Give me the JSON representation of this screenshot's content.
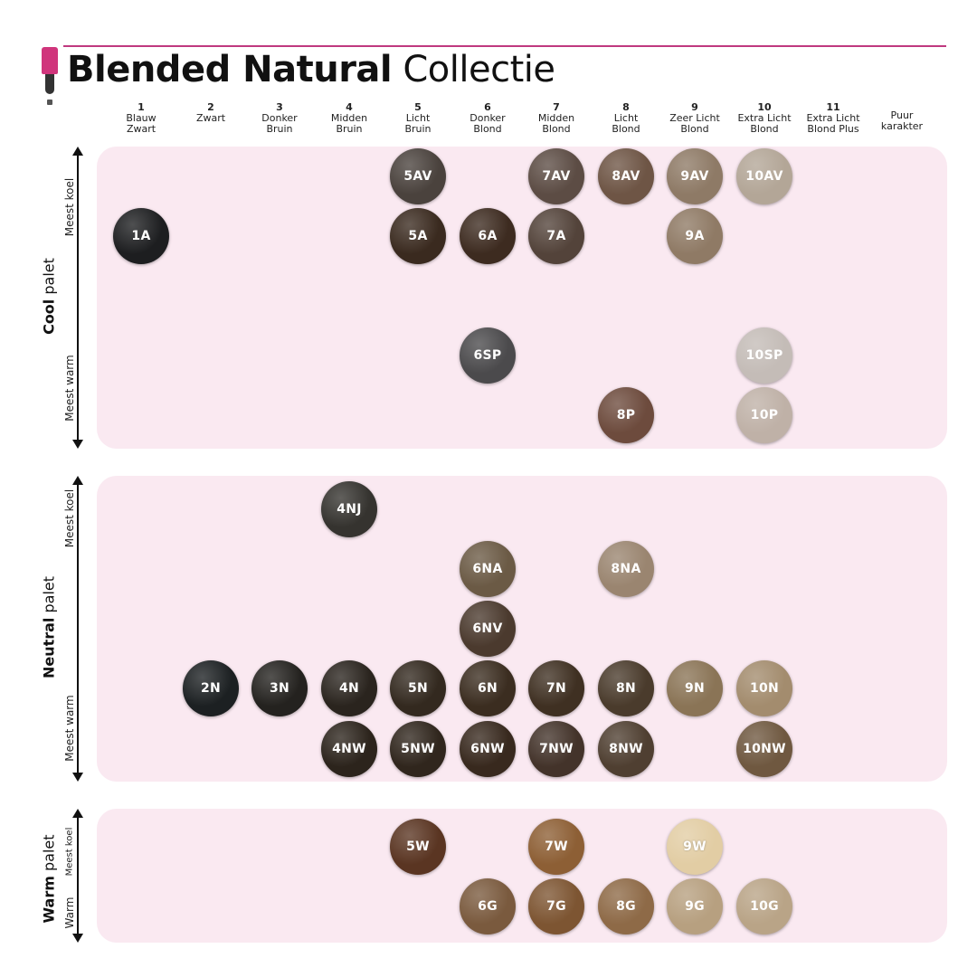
{
  "header": {
    "title_bold": "Blended Natural",
    "title_light": "Collectie"
  },
  "columns": [
    {
      "num": "1",
      "label": "Blauw\nZwart"
    },
    {
      "num": "2",
      "label": "Zwart"
    },
    {
      "num": "3",
      "label": "Donker\nBruin"
    },
    {
      "num": "4",
      "label": "Midden\nBruin"
    },
    {
      "num": "5",
      "label": "Licht\nBruin"
    },
    {
      "num": "6",
      "label": "Donker\nBlond"
    },
    {
      "num": "7",
      "label": "Midden\nBlond"
    },
    {
      "num": "8",
      "label": "Licht\nBlond"
    },
    {
      "num": "9",
      "label": "Zeer Licht\nBlond"
    },
    {
      "num": "10",
      "label": "Extra Licht\nBlond"
    },
    {
      "num": "11",
      "label": "Extra Licht\nBlond Plus"
    },
    {
      "num": "",
      "label": "Puur\nkarakter"
    }
  ],
  "palettes": {
    "cool": {
      "name_bold": "Cool",
      "name_rest": " palet",
      "top_label": "Meest koel",
      "bottom_label": "Meest warm"
    },
    "neutral": {
      "name_bold": "Neutral",
      "name_rest": " palet",
      "top_label": "Meest koel",
      "bottom_label": "Meest warm"
    },
    "warm": {
      "name_bold": "Warm",
      "name_rest": " palet",
      "top_label": "Meest koel",
      "bottom_label": "Warm"
    }
  },
  "swatches": [
    {
      "label": "5AV",
      "color": "#4a423d"
    },
    {
      "label": "7AV",
      "color": "#5c4c44"
    },
    {
      "label": "8AV",
      "color": "#6e5545"
    },
    {
      "label": "9AV",
      "color": "#8e7a66"
    },
    {
      "label": "10AV",
      "color": "#b3a697"
    },
    {
      "label": "1A",
      "color": "#1d1e20"
    },
    {
      "label": "5A",
      "color": "#3a2a1f"
    },
    {
      "label": "6A",
      "color": "#3d2b20"
    },
    {
      "label": "7A",
      "color": "#53433a"
    },
    {
      "label": "9A",
      "color": "#8f7a65"
    },
    {
      "label": "6SP",
      "color": "#4b4a4c"
    },
    {
      "label": "10SP",
      "color": "#c4bcb7"
    },
    {
      "label": "8P",
      "color": "#6d4b3d"
    },
    {
      "label": "10P",
      "color": "#bfb1a7"
    },
    {
      "label": "4NJ",
      "color": "#35332f"
    },
    {
      "label": "6NA",
      "color": "#6b5a45"
    },
    {
      "label": "8NA",
      "color": "#9a8570"
    },
    {
      "label": "6NV",
      "color": "#4b3a2e"
    },
    {
      "label": "2N",
      "color": "#1c2022"
    },
    {
      "label": "3N",
      "color": "#24221f"
    },
    {
      "label": "4N",
      "color": "#2a241e"
    },
    {
      "label": "5N",
      "color": "#33291f"
    },
    {
      "label": "6N",
      "color": "#3b2d20"
    },
    {
      "label": "7N",
      "color": "#3f3022"
    },
    {
      "label": "8N",
      "color": "#4a3b2c"
    },
    {
      "label": "9N",
      "color": "#8a7456"
    },
    {
      "label": "10N",
      "color": "#a38c6e"
    },
    {
      "label": "4NW",
      "color": "#2c241c"
    },
    {
      "label": "5NW",
      "color": "#30261d"
    },
    {
      "label": "6NW",
      "color": "#38291e"
    },
    {
      "label": "7NW",
      "color": "#43332a"
    },
    {
      "label": "8NW",
      "color": "#4f3f31"
    },
    {
      "label": "10NW",
      "color": "#6f5840"
    },
    {
      "label": "5W",
      "color": "#5a3522"
    },
    {
      "label": "7W",
      "color": "#8d5f35"
    },
    {
      "label": "9W",
      "color": "#e2cda4"
    },
    {
      "label": "6G",
      "color": "#7a5a3e"
    },
    {
      "label": "7G",
      "color": "#7d5532"
    },
    {
      "label": "8G",
      "color": "#8e6a47"
    },
    {
      "label": "9G",
      "color": "#b7a080"
    },
    {
      "label": "10G",
      "color": "#b9a487"
    }
  ]
}
